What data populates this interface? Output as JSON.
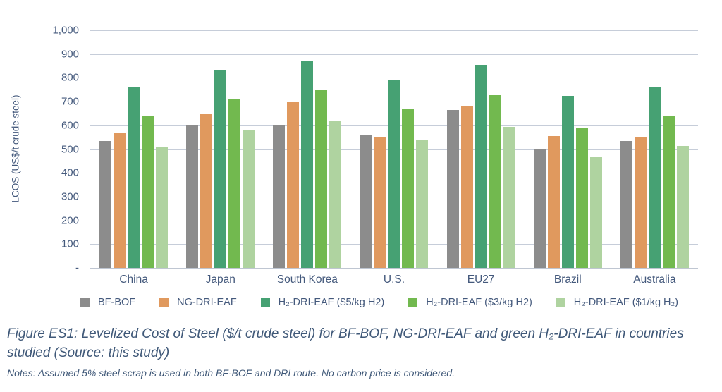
{
  "y_axis": {
    "title": "LCOS (US$/t crude steel)",
    "tick_labels": [
      "1,000",
      "900",
      "800",
      "700",
      "600",
      "500",
      "400",
      "300",
      "200",
      "100",
      "-"
    ]
  },
  "legend": [
    {
      "label": "BF-BOF",
      "color": "#8c8c8c"
    },
    {
      "label": "NG-DRI-EAF",
      "color": "#e0995e"
    },
    {
      "label": "H₂-DRI-EAF ($5/kg H2)",
      "color": "#46a173"
    },
    {
      "label": "H₂-DRI-EAF ($3/kg H2)",
      "color": "#72b94f"
    },
    {
      "label": "H₂-DRI-EAF ($1/kg H₂)",
      "color": "#afd3a0"
    }
  ],
  "chart_data": {
    "type": "bar",
    "title": "",
    "xlabel": "",
    "ylabel": "LCOS (US$/t crude steel)",
    "ylim": [
      0,
      1000
    ],
    "ytick_step": 100,
    "grid": true,
    "legend_position": "bottom",
    "categories": [
      "China",
      "Japan",
      "South Korea",
      "U.S.",
      "EU27",
      "Brazil",
      "Australia"
    ],
    "series": [
      {
        "name": "BF-BOF",
        "color": "#8c8c8c",
        "values": [
          533,
          603,
          603,
          562,
          665,
          500,
          533
        ]
      },
      {
        "name": "NG-DRI-EAF",
        "color": "#e0995e",
        "values": [
          568,
          650,
          700,
          550,
          683,
          555,
          550
        ]
      },
      {
        "name": "H₂-DRI-EAF ($5/kg H2)",
        "color": "#46a173",
        "values": [
          763,
          833,
          872,
          790,
          855,
          723,
          763
        ]
      },
      {
        "name": "H₂-DRI-EAF ($3/kg H2)",
        "color": "#72b94f",
        "values": [
          638,
          708,
          748,
          667,
          728,
          592,
          638
        ]
      },
      {
        "name": "H₂-DRI-EAF ($1/kg H₂)",
        "color": "#afd3a0",
        "values": [
          510,
          580,
          618,
          538,
          595,
          465,
          513
        ]
      }
    ]
  },
  "caption": {
    "line1": "Figure ES1: Levelized Cost of Steel ($/t crude steel) for BF-BOF, NG-DRI-EAF and green H₂-DRI-EAF in countries",
    "line2": "studied (Source: this study)",
    "notes": "Notes: Assumed 5% steel scrap is used in both BF-BOF and DRI route. No carbon price is considered."
  },
  "colors": {
    "text": "#44597c",
    "gridline": "#c6cdd9",
    "background": "#ffffff"
  }
}
